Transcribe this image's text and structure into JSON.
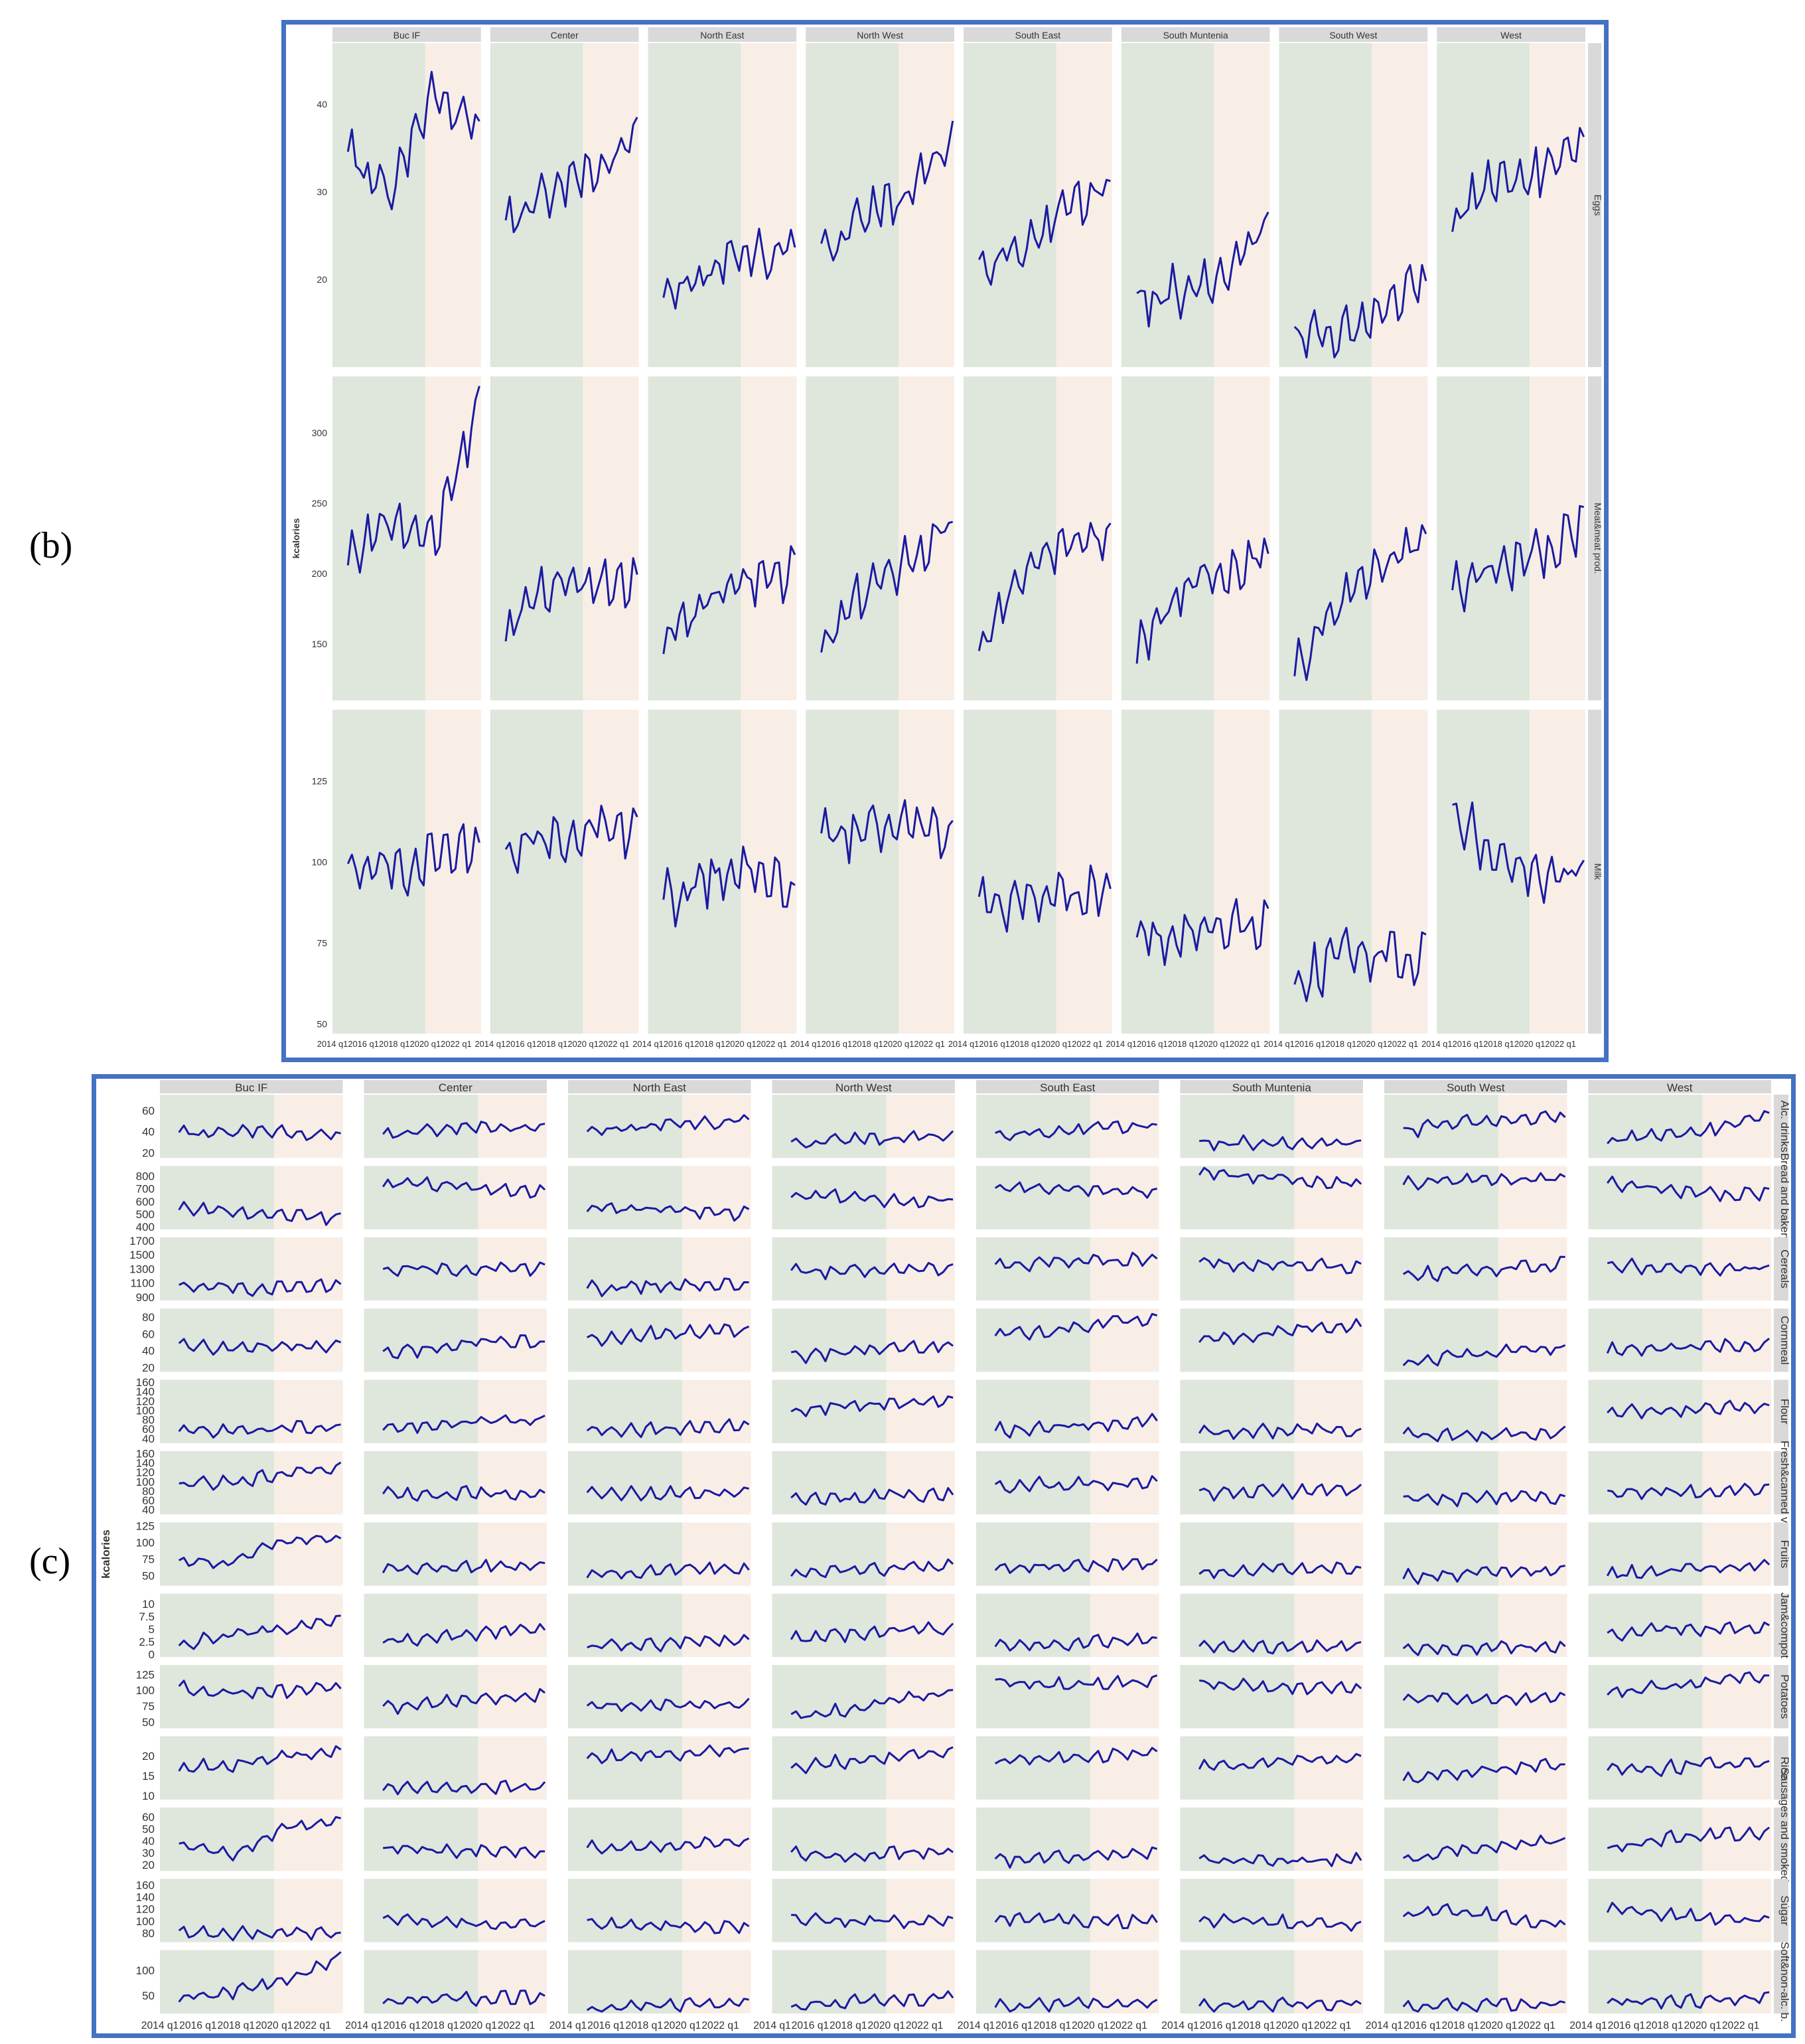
{
  "labels": {
    "b": "(b)",
    "c": "(c)"
  },
  "colors": {
    "frame": "#4472c4",
    "line": "#1a1aa0",
    "green_zone": "#dfe6dc",
    "peach_zone": "#f8eee6",
    "strip": "#d9d9d9"
  },
  "x_ticks": [
    "2014 q1",
    "2016 q1",
    "2018 q1",
    "2020 q1",
    "2022 q1"
  ],
  "chart_data": [
    {
      "type": "line",
      "id": "b",
      "ylabel": "kcalories",
      "regions": [
        "Buc IF",
        "Center",
        "North East",
        "North West",
        "South East",
        "South Muntenia",
        "South West",
        "West"
      ],
      "rows": [
        {
          "label": "Eggs",
          "ticks": [
            20,
            30,
            40
          ],
          "ylim": [
            10,
            47
          ],
          "levels": [
            [
              34,
              30,
              42,
              37
            ],
            [
              26,
              30,
              32,
              36
            ],
            [
              17,
              21,
              23,
              23
            ],
            [
              23,
              27,
              30,
              36
            ],
            [
              21,
              24,
              28,
              31
            ],
            [
              17,
              19,
              21,
              26
            ],
            [
              13,
              13,
              17,
              20
            ],
            [
              27,
              31,
              32,
              35
            ]
          ]
        },
        {
          "label": "Meat&meat prod.",
          "ticks": [
            150,
            200,
            250,
            300
          ],
          "ylim": [
            110,
            340
          ],
          "levels": [
            [
              215,
              235,
              225,
              320
            ],
            [
              160,
              190,
              195,
              195
            ],
            [
              150,
              180,
              195,
              200
            ],
            [
              150,
              185,
              210,
              235
            ],
            [
              150,
              200,
              220,
              225
            ],
            [
              140,
              190,
              200,
              215
            ],
            [
              130,
              175,
              210,
              220
            ],
            [
              190,
              205,
              215,
              230
            ]
          ]
        },
        {
          "label": "Milk",
          "ticks": [
            50,
            75,
            100,
            125
          ],
          "ylim": [
            47,
            147
          ],
          "levels": [
            [
              100,
              96,
              104,
              104
            ],
            [
              104,
              108,
              110,
              108
            ],
            [
              88,
              95,
              99,
              92
            ],
            [
              108,
              110,
              112,
              108
            ],
            [
              88,
              88,
              90,
              92
            ],
            [
              75,
              79,
              80,
              82
            ],
            [
              60,
              72,
              72,
              70
            ],
            [
              115,
              102,
              95,
              98
            ]
          ]
        }
      ]
    },
    {
      "type": "line",
      "id": "c",
      "ylabel": "kcalories",
      "regions": [
        "Buc IF",
        "Center",
        "North East",
        "North West",
        "South East",
        "South Muntenia",
        "South West",
        "West"
      ],
      "rows": [
        {
          "label": "Alc. drinks",
          "ticks": [
            20,
            40,
            60
          ],
          "ylim": [
            15,
            75
          ],
          "levels": [
            [
              38,
              40,
              40,
              36
            ],
            [
              36,
              42,
              44,
              42
            ],
            [
              38,
              45,
              48,
              50
            ],
            [
              28,
              32,
              34,
              36
            ],
            [
              36,
              40,
              44,
              46
            ],
            [
              28,
              30,
              30,
              28
            ],
            [
              40,
              48,
              52,
              54
            ],
            [
              32,
              36,
              42,
              55
            ]
          ]
        },
        {
          "label": "Bread and bakery",
          "ticks": [
            400,
            500,
            600,
            700,
            800
          ],
          "ylim": [
            380,
            880
          ],
          "levels": [
            [
              560,
              510,
              490,
              460
            ],
            [
              740,
              730,
              700,
              680
            ],
            [
              540,
              540,
              520,
              500
            ],
            [
              650,
              630,
              600,
              610
            ],
            [
              720,
              700,
              680,
              670
            ],
            [
              820,
              800,
              760,
              740
            ],
            [
              740,
              760,
              780,
              770
            ],
            [
              750,
              700,
              660,
              650
            ]
          ]
        },
        {
          "label": "Cereals",
          "ticks": [
            900,
            1100,
            1300,
            1500,
            1700
          ],
          "ylim": [
            850,
            1750
          ],
          "levels": [
            [
              1080,
              1010,
              1060,
              1060
            ],
            [
              1300,
              1310,
              1300,
              1290
            ],
            [
              1020,
              1060,
              1080,
              1100
            ],
            [
              1270,
              1270,
              1290,
              1310
            ],
            [
              1350,
              1400,
              1420,
              1450
            ],
            [
              1380,
              1370,
              1360,
              1330
            ],
            [
              1200,
              1260,
              1320,
              1380
            ],
            [
              1350,
              1320,
              1300,
              1320
            ]
          ]
        },
        {
          "label": "Cornmeal",
          "ticks": [
            20,
            40,
            60,
            80
          ],
          "ylim": [
            15,
            90
          ],
          "levels": [
            [
              46,
              44,
              46,
              44
            ],
            [
              36,
              44,
              52,
              50
            ],
            [
              52,
              60,
              62,
              64
            ],
            [
              34,
              38,
              44,
              46
            ],
            [
              62,
              62,
              74,
              78
            ],
            [
              54,
              58,
              68,
              70
            ],
            [
              26,
              34,
              40,
              44
            ],
            [
              40,
              44,
              46,
              48
            ]
          ]
        },
        {
          "label": "Flour",
          "ticks": [
            40,
            60,
            80,
            100,
            120,
            140,
            160
          ],
          "ylim": [
            30,
            165
          ],
          "levels": [
            [
              60,
              56,
              62,
              68
            ],
            [
              62,
              70,
              78,
              80
            ],
            [
              60,
              58,
              64,
              70
            ],
            [
              100,
              108,
              116,
              120
            ],
            [
              58,
              62,
              70,
              80
            ],
            [
              52,
              54,
              60,
              56
            ],
            [
              50,
              44,
              50,
              54
            ],
            [
              94,
              98,
              104,
              108
            ]
          ]
        },
        {
          "label": "Fresh&canned v.",
          "ticks": [
            40,
            60,
            80,
            100,
            120,
            140,
            160
          ],
          "ylim": [
            30,
            165
          ],
          "levels": [
            [
              95,
              98,
              118,
              132
            ],
            [
              72,
              74,
              76,
              76
            ],
            [
              74,
              74,
              76,
              78
            ],
            [
              62,
              66,
              70,
              74
            ],
            [
              90,
              94,
              96,
              96
            ],
            [
              76,
              78,
              80,
              82
            ],
            [
              62,
              64,
              66,
              66
            ],
            [
              74,
              76,
              80,
              84
            ]
          ]
        },
        {
          "label": "Fruits",
          "ticks": [
            50,
            75,
            100,
            125
          ],
          "ylim": [
            35,
            130
          ],
          "levels": [
            [
              68,
              72,
              104,
              106
            ],
            [
              60,
              62,
              64,
              64
            ],
            [
              52,
              56,
              60,
              60
            ],
            [
              54,
              58,
              62,
              64
            ],
            [
              62,
              64,
              66,
              66
            ],
            [
              56,
              58,
              60,
              60
            ],
            [
              48,
              52,
              56,
              58
            ],
            [
              52,
              56,
              62,
              66
            ]
          ]
        },
        {
          "label": "Jam&compot",
          "ticks": [
            0,
            2.5,
            5,
            7.5,
            10
          ],
          "ylim": [
            -0.5,
            12
          ],
          "levels": [
            [
              2,
              4,
              5,
              7
            ],
            [
              2.5,
              3,
              4.5,
              5
            ],
            [
              1.5,
              2,
              2.5,
              2.5
            ],
            [
              3,
              4,
              5,
              5
            ],
            [
              1.5,
              2,
              2.5,
              3
            ],
            [
              1.5,
              1.5,
              1.5,
              1.5
            ],
            [
              1,
              1,
              1.5,
              1.5
            ],
            [
              4,
              5,
              5,
              5
            ]
          ]
        },
        {
          "label": "Potatoes",
          "ticks": [
            50,
            75,
            100,
            125
          ],
          "ylim": [
            40,
            140
          ],
          "levels": [
            [
              104,
              96,
              98,
              104
            ],
            [
              72,
              80,
              88,
              92
            ],
            [
              72,
              76,
              78,
              78
            ],
            [
              58,
              70,
              86,
              98
            ],
            [
              112,
              108,
              110,
              116
            ],
            [
              110,
              106,
              104,
              102
            ],
            [
              90,
              88,
              88,
              86
            ],
            [
              98,
              104,
              116,
              124
            ]
          ]
        },
        {
          "label": "Rice",
          "ticks": [
            10,
            15,
            20
          ],
          "ylim": [
            9,
            25
          ],
          "levels": [
            [
              17,
              18,
              20,
              21
            ],
            [
              12,
              11.5,
              12,
              12
            ],
            [
              20,
              20,
              21,
              21.5
            ],
            [
              17.5,
              18.5,
              20,
              21
            ],
            [
              18.5,
              19,
              20,
              21
            ],
            [
              17,
              18,
              19,
              19
            ],
            [
              14,
              15.5,
              17,
              18
            ],
            [
              16.5,
              17,
              18,
              18
            ]
          ]
        },
        {
          "label": "Sausages and smoked prod.",
          "ticks": [
            20,
            30,
            40,
            50,
            60
          ],
          "ylim": [
            15,
            68
          ],
          "levels": [
            [
              38,
              30,
              52,
              54
            ],
            [
              34,
              32,
              32,
              30
            ],
            [
              34,
              36,
              38,
              38
            ],
            [
              30,
              28,
              30,
              30
            ],
            [
              24,
              26,
              28,
              30
            ],
            [
              24,
              24,
              24,
              24
            ],
            [
              24,
              32,
              38,
              40
            ],
            [
              32,
              42,
              46,
              46
            ]
          ]
        },
        {
          "label": "Sugar",
          "ticks": [
            80,
            100,
            120,
            140,
            160
          ],
          "ylim": [
            65,
            170
          ],
          "levels": [
            [
              80,
              78,
              80,
              78
            ],
            [
              100,
              98,
              96,
              92
            ],
            [
              96,
              92,
              92,
              90
            ],
            [
              104,
              100,
              100,
              98
            ],
            [
              104,
              102,
              100,
              98
            ],
            [
              104,
              100,
              96,
              94
            ],
            [
              112,
              118,
              104,
              96
            ],
            [
              118,
              112,
              104,
              102
            ]
          ]
        },
        {
          "label": "Soft&non-alc. b.",
          "ticks": [
            50,
            100
          ],
          "ylim": [
            15,
            140
          ],
          "levels": [
            [
              42,
              56,
              80,
              128
            ],
            [
              38,
              42,
              46,
              48
            ],
            [
              24,
              28,
              32,
              34
            ],
            [
              30,
              36,
              42,
              46
            ],
            [
              28,
              32,
              34,
              36
            ],
            [
              30,
              32,
              34,
              36
            ],
            [
              28,
              30,
              32,
              32
            ],
            [
              34,
              38,
              42,
              46
            ]
          ]
        }
      ]
    }
  ]
}
